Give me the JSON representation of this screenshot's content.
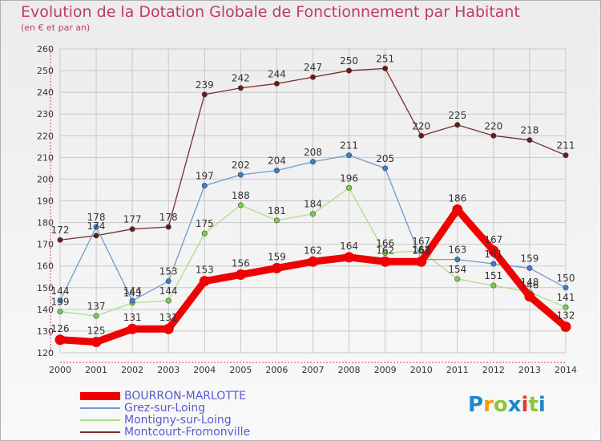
{
  "title": "Evolution de la Dotation Globale de Fonctionnement par Habitant",
  "subtitle": "(en € et par an)",
  "logo": {
    "text": "Proxiti",
    "letters": [
      "P",
      "r",
      "o",
      "x",
      "i",
      "t",
      "i"
    ],
    "colors": [
      "#1e88c8",
      "#f39c12",
      "#8cc63f",
      "#1e88c8",
      "#e63c2f",
      "#8cc63f",
      "#1e88c8"
    ]
  },
  "chart_data": {
    "type": "line",
    "title": "Evolution de la Dotation Globale de Fonctionnement par Habitant",
    "subtitle": "(en € et par an)",
    "xlabel": "",
    "ylabel": "",
    "ylim": [
      120,
      260
    ],
    "ytick_step": 10,
    "categories": [
      "2000",
      "2001",
      "2002",
      "2003",
      "2004",
      "2005",
      "2006",
      "2007",
      "2008",
      "2009",
      "2010",
      "2011",
      "2012",
      "2013",
      "2014"
    ],
    "series": [
      {
        "name": "BOURRON-MARLOTTE",
        "color": "#ee0000",
        "emphasis": true,
        "values": [
          126,
          125,
          131,
          131,
          153,
          156,
          159,
          162,
          164,
          162,
          162,
          186,
          167,
          146,
          132
        ]
      },
      {
        "name": "Grez-sur-Loing",
        "color": "#6f9ccc",
        "emphasis": false,
        "values": [
          144,
          178,
          144,
          153,
          197,
          202,
          204,
          208,
          211,
          205,
          163,
          163,
          161,
          159,
          150
        ]
      },
      {
        "name": "Montigny-sur-Loing",
        "color": "#a8e08a",
        "emphasis": false,
        "values": [
          139,
          137,
          143,
          144,
          175,
          188,
          181,
          184,
          196,
          166,
          167,
          154,
          151,
          148,
          141
        ]
      },
      {
        "name": "Montcourt-Fromonville",
        "color": "#7a2e2e",
        "emphasis": false,
        "values": [
          172,
          174,
          177,
          178,
          239,
          242,
          244,
          247,
          250,
          251,
          220,
          225,
          220,
          218,
          211
        ]
      }
    ],
    "point_colors": {
      "BOURRON-MARLOTTE": "#ee0000",
      "Grez-sur-Loing": "#3a7fd0",
      "Montigny-sur-Loing": "#7ad04a",
      "Montcourt-Fromonville": "#6b1a1a"
    },
    "legend_position": "bottom-left",
    "grid": true
  }
}
